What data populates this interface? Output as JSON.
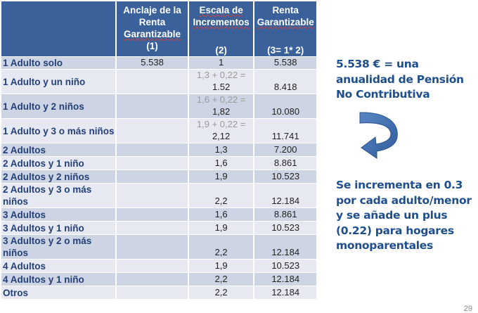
{
  "table": {
    "headers": [
      {
        "line1": "Anclaje de la",
        "line2": "Renta",
        "line3": "Garantizable",
        "line4": "(1)"
      },
      {
        "line1": "Escala de",
        "line2": "Incrementos",
        "line3": "",
        "line4": "(2)"
      },
      {
        "line1": "Renta",
        "line2": "Garantizable",
        "line3": "",
        "line4": "(3= 1* 2)"
      }
    ],
    "rows": [
      {
        "label": "1 Adulto solo",
        "anchor": "5.538",
        "scale_pre": "",
        "scale": "1",
        "renta": "5.538"
      },
      {
        "label": "1 Adulto y un niño",
        "anchor": "",
        "scale_pre": "1,3 + 0,22 =",
        "scale": "1.52",
        "renta": "8.418"
      },
      {
        "label": "1 Adulto y 2 niños",
        "anchor": "",
        "scale_pre": "1,6 + 0,22 =",
        "scale": "1,82",
        "renta": "10.080"
      },
      {
        "label": "1 Adulto y 3 o más niños",
        "anchor": "",
        "scale_pre": "1,9 + 0,22 =",
        "scale": "2,12",
        "renta": "11.741"
      },
      {
        "label": "2 Adultos",
        "anchor": "",
        "scale_pre": "",
        "scale": "1,3",
        "renta": "7.200"
      },
      {
        "label": "2 Adultos y 1 niño",
        "anchor": "",
        "scale_pre": "",
        "scale": "1,6",
        "renta": "8.861"
      },
      {
        "label": "2 Adultos y 2 niños",
        "anchor": "",
        "scale_pre": "",
        "scale": "1,9",
        "renta": "10.523"
      },
      {
        "label": "2 Adultos y 3 o más niños",
        "anchor": "",
        "scale_pre": "",
        "scale": "2,2",
        "renta": "12.184"
      },
      {
        "label": "3 Adultos",
        "anchor": "",
        "scale_pre": "",
        "scale": "1,6",
        "renta": "8.861"
      },
      {
        "label": "3 Adultos y 1 niño",
        "anchor": "",
        "scale_pre": "",
        "scale": "1,9",
        "renta": "10.523"
      },
      {
        "label": "3 Adultos y 2  o más niños",
        "anchor": "",
        "scale_pre": "",
        "scale": "2,2",
        "renta": "12.184"
      },
      {
        "label": "4 Adultos",
        "anchor": "",
        "scale_pre": "",
        "scale": "1,9",
        "renta": "10.523"
      },
      {
        "label": "4 Adultos y 1 niño",
        "anchor": "",
        "scale_pre": "",
        "scale": "2,2",
        "renta": "12.184"
      },
      {
        "label": "Otros",
        "anchor": "",
        "scale_pre": "",
        "scale": "2,2",
        "renta": "12.184"
      }
    ]
  },
  "notes": {
    "top": "5.538 € = una anualidad de Pensión No Contributiva",
    "bottom": "Se incrementa en 0.3 por cada adulto/menor y se añade un plus (0.22) para hogares monoparentales"
  },
  "page_number": "29",
  "colors": {
    "header": "#3a619a",
    "row_dark": "#cdd4e3",
    "row_light": "#e6e9f1",
    "text_blue": "#1f4e8c",
    "arrow": "#3f6fb0"
  }
}
